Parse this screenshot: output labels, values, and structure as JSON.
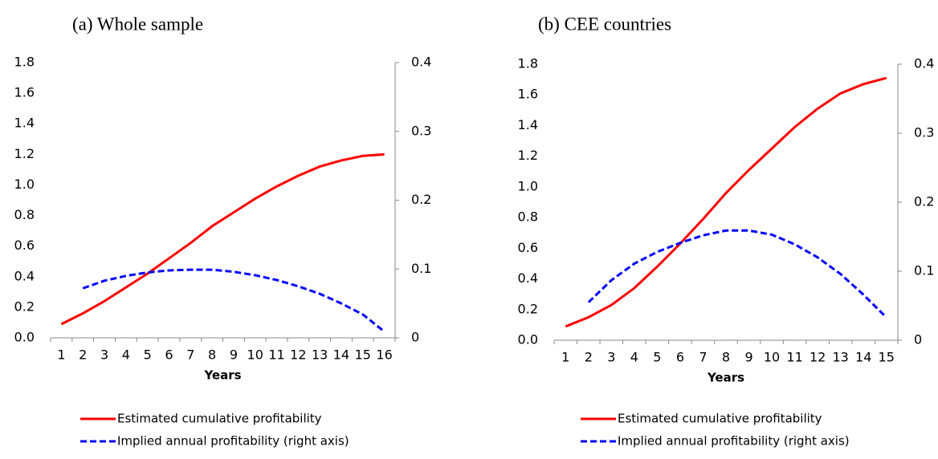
{
  "chart_data": [
    {
      "type": "line",
      "title": "(a) Whole sample",
      "x_label": "Years",
      "categories": [
        "1",
        "2",
        "3",
        "4",
        "5",
        "6",
        "7",
        "8",
        "9",
        "10",
        "11",
        "12",
        "13",
        "14",
        "15",
        "16"
      ],
      "ylim": [
        0,
        1.8
      ],
      "yticks": [
        {
          "value": 0,
          "label": "0.0"
        },
        0.2,
        0.4,
        0.6,
        0.8,
        {
          "value": 1,
          "label": "1.0"
        },
        1.2,
        1.4,
        1.6,
        1.8
      ],
      "y2lim": [
        0,
        0.4
      ],
      "y2ticks": [
        0,
        0.1,
        0.2,
        0.3,
        0.4
      ],
      "series": [
        {
          "name": "Estimated cumulative profitability",
          "color": "#ff0000",
          "line_style": "solid",
          "values": [
            0.09,
            0.16,
            0.24,
            0.33,
            0.42,
            0.52,
            0.62,
            0.73,
            0.82,
            0.91,
            0.99,
            1.06,
            1.12,
            1.16,
            1.19,
            1.2
          ]
        },
        {
          "name": "Implied annual profitability (right axis)",
          "color": "#0000ff",
          "line_style": "dashed",
          "axis": "y2",
          "values": [
            null,
            0.072,
            0.083,
            0.09,
            0.095,
            0.098,
            0.099,
            0.099,
            0.096,
            0.091,
            0.084,
            0.075,
            0.064,
            0.05,
            0.034,
            0.009
          ]
        }
      ]
    },
    {
      "type": "line",
      "title": "(b) CEE countries",
      "x_label": "Years",
      "categories": [
        "1",
        "2",
        "3",
        "4",
        "5",
        "6",
        "7",
        "8",
        "9",
        "10",
        "11",
        "12",
        "13",
        "14",
        "15"
      ],
      "ylim": [
        0,
        1.8
      ],
      "yticks": [
        {
          "value": 0,
          "label": "0.0"
        },
        0.2,
        0.4,
        0.6,
        0.8,
        {
          "value": 1,
          "label": "1.0"
        },
        1.2,
        1.4,
        1.6,
        1.8
      ],
      "y2lim": [
        0,
        0.4
      ],
      "y2ticks": [
        0,
        0.1,
        0.2,
        0.3,
        0.4
      ],
      "series": [
        {
          "name": "Estimated cumulative profitability",
          "color": "#ff0000",
          "line_style": "solid",
          "values": [
            0.09,
            0.15,
            0.23,
            0.34,
            0.48,
            0.63,
            0.79,
            0.96,
            1.11,
            1.25,
            1.39,
            1.51,
            1.61,
            1.67,
            1.71
          ]
        },
        {
          "name": "Implied annual profitability (right axis)",
          "color": "#0000ff",
          "line_style": "dashed",
          "axis": "y2",
          "values": [
            null,
            0.055,
            0.087,
            0.111,
            0.128,
            0.141,
            0.152,
            0.159,
            0.159,
            0.153,
            0.139,
            0.12,
            0.096,
            0.066,
            0.033
          ]
        }
      ]
    }
  ]
}
